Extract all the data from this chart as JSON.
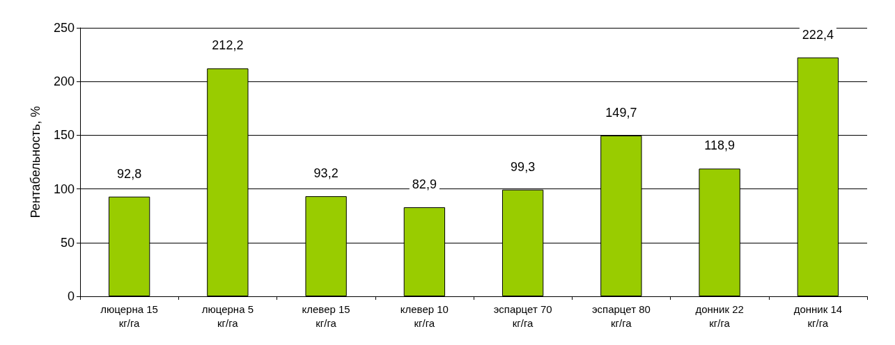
{
  "chart_data": {
    "type": "bar",
    "ylabel": "Рентабельность, %",
    "categories": [
      "люцерна 15 кг/га",
      "люцерна 5 кг/га",
      "клевер 15 кг/га",
      "клевер 10 кг/га",
      "эспарцет 70 кг/га",
      "эспарцет 80 кг/га",
      "донник 22 кг/га",
      "донник 14 кг/га"
    ],
    "values": [
      92.8,
      212.2,
      93.2,
      82.9,
      99.3,
      149.7,
      118.9,
      222.4
    ],
    "value_labels": [
      "92,8",
      "212,2",
      "93,2",
      "82,9",
      "99,3",
      "149,7",
      "118,9",
      "222,4"
    ],
    "color": "#99cc00",
    "ylim": [
      0,
      250
    ],
    "yticks": [
      0,
      50,
      100,
      150,
      200,
      250
    ],
    "grid": "y"
  }
}
